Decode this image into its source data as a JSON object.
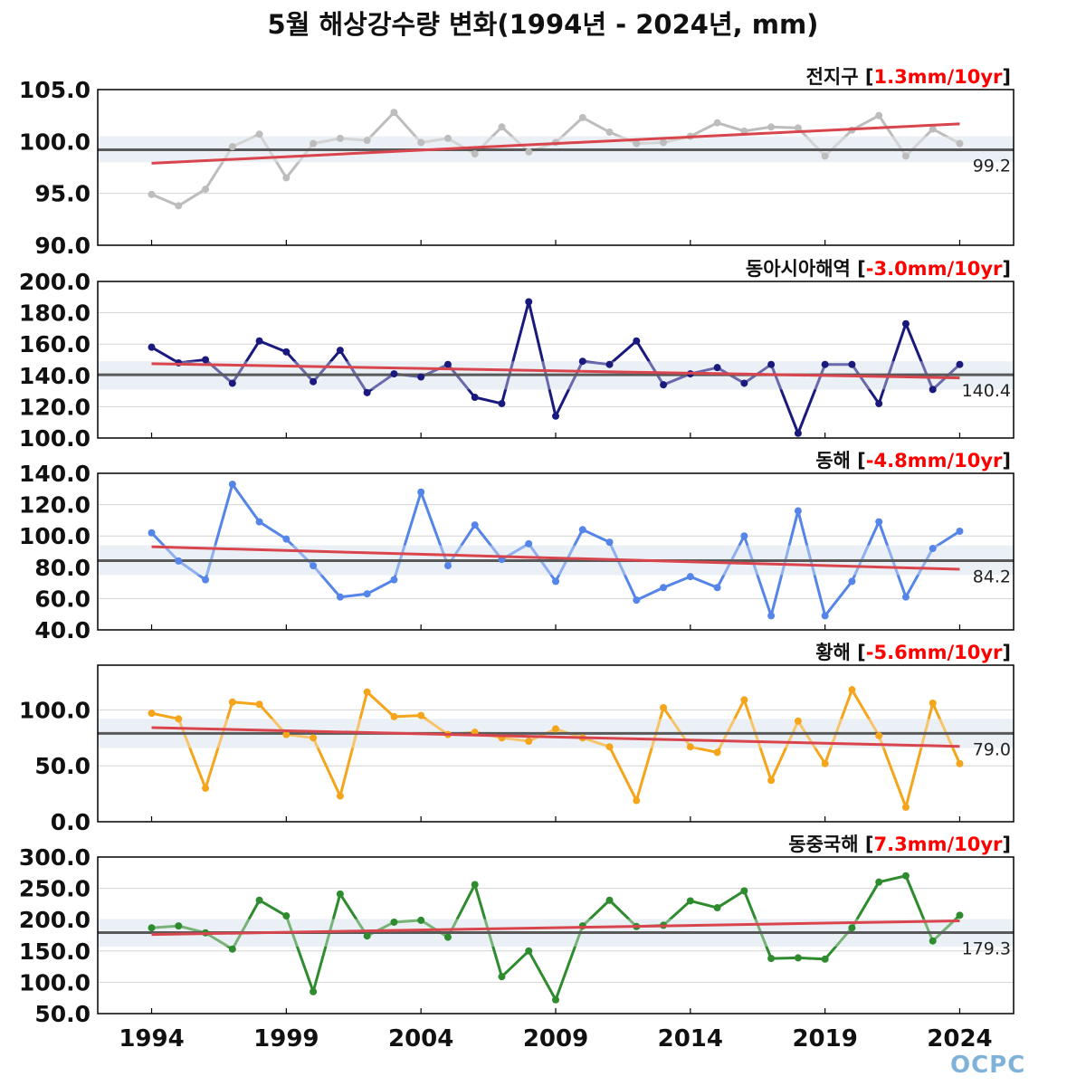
{
  "title": "5월 해상강수량 변화(1994년 - 2024년, mm)",
  "logo": "OCPC",
  "colors": {
    "trend": "#d9454d",
    "mean": "#000000",
    "band": "#dfe8f1",
    "label_red": "#ff0000"
  },
  "x_ticks": [
    1994,
    1999,
    2004,
    2009,
    2014,
    2019,
    2024
  ],
  "chart_data": [
    {
      "type": "line",
      "name": "전지구",
      "trend_label": "1.3mm/10yr",
      "color": "#bdbdbd",
      "ylim": [
        90,
        105
      ],
      "yticks": [
        "90.0",
        "95.0",
        "100.0",
        "105.0"
      ],
      "ytick_values": [
        90,
        95,
        100,
        105
      ],
      "mean": 99.2,
      "mean_label": "99.2",
      "band": [
        98.0,
        100.5
      ],
      "trend": [
        97.9,
        101.7
      ],
      "x": [
        1994,
        1995,
        1996,
        1997,
        1998,
        1999,
        2000,
        2001,
        2002,
        2003,
        2004,
        2005,
        2006,
        2007,
        2008,
        2009,
        2010,
        2011,
        2012,
        2013,
        2014,
        2015,
        2016,
        2017,
        2018,
        2019,
        2020,
        2021,
        2022,
        2023,
        2024
      ],
      "values": [
        94.9,
        93.8,
        95.4,
        99.5,
        100.7,
        96.5,
        99.8,
        100.3,
        100.1,
        102.8,
        99.9,
        100.3,
        98.8,
        101.4,
        99.0,
        99.9,
        102.3,
        100.9,
        99.8,
        99.9,
        100.5,
        101.8,
        101.0,
        101.4,
        101.3,
        98.6,
        101.1,
        102.5,
        98.6,
        101.2,
        99.8
      ]
    },
    {
      "type": "line",
      "name": "동아시아해역",
      "trend_label": "-3.0mm/10yr",
      "color": "#1a1a7e",
      "ylim": [
        100,
        200
      ],
      "yticks": [
        "100.0",
        "120.0",
        "140.0",
        "160.0",
        "180.0",
        "200.0"
      ],
      "ytick_values": [
        100,
        120,
        140,
        160,
        180,
        200
      ],
      "mean": 140.4,
      "mean_label": "140.4",
      "band": [
        131,
        149
      ],
      "trend": [
        147.5,
        138.4
      ],
      "x": [
        1994,
        1995,
        1996,
        1997,
        1998,
        1999,
        2000,
        2001,
        2002,
        2003,
        2004,
        2005,
        2006,
        2007,
        2008,
        2009,
        2010,
        2011,
        2012,
        2013,
        2014,
        2015,
        2016,
        2017,
        2018,
        2019,
        2020,
        2021,
        2022,
        2023,
        2024
      ],
      "values": [
        158,
        148,
        150,
        135,
        162,
        155,
        136,
        156,
        129,
        141,
        139,
        147,
        126,
        122,
        187,
        114,
        149,
        147,
        162,
        134,
        141,
        145,
        135,
        147,
        103,
        147,
        147,
        122,
        173,
        131,
        147
      ]
    },
    {
      "type": "line",
      "name": "동해",
      "trend_label": "-4.8mm/10yr",
      "color": "#5585e8",
      "ylim": [
        40,
        140
      ],
      "yticks": [
        "40.0",
        "60.0",
        "80.0",
        "100.0",
        "120.0",
        "140.0"
      ],
      "ytick_values": [
        40,
        60,
        80,
        100,
        120,
        140
      ],
      "mean": 84.2,
      "mean_label": "84.2",
      "band": [
        75,
        94
      ],
      "trend": [
        93.1,
        78.7
      ],
      "x": [
        1994,
        1995,
        1996,
        1997,
        1998,
        1999,
        2000,
        2001,
        2002,
        2003,
        2004,
        2005,
        2006,
        2007,
        2008,
        2009,
        2010,
        2011,
        2012,
        2013,
        2014,
        2015,
        2016,
        2017,
        2018,
        2019,
        2020,
        2021,
        2022,
        2023,
        2024
      ],
      "values": [
        102,
        84,
        72,
        133,
        109,
        98,
        81,
        61,
        63,
        72,
        128,
        81,
        107,
        85,
        95,
        71,
        104,
        96,
        59,
        67,
        74,
        67,
        100,
        49,
        116,
        49,
        71,
        109,
        61,
        92,
        103
      ]
    },
    {
      "type": "line",
      "name": "황해",
      "trend_label": "-5.6mm/10yr",
      "color": "#f5a51c",
      "ylim": [
        0,
        140
      ],
      "yticks": [
        "0.0",
        "50.0",
        "100.0"
      ],
      "ytick_values": [
        0,
        50,
        100
      ],
      "mean": 79.0,
      "mean_label": "79.0",
      "band": [
        66,
        92
      ],
      "trend": [
        84.2,
        67.4
      ],
      "x": [
        1994,
        1995,
        1996,
        1997,
        1998,
        1999,
        2000,
        2001,
        2002,
        2003,
        2004,
        2005,
        2006,
        2007,
        2008,
        2009,
        2010,
        2011,
        2012,
        2013,
        2014,
        2015,
        2016,
        2017,
        2018,
        2019,
        2020,
        2021,
        2022,
        2023,
        2024
      ],
      "values": [
        97,
        92,
        30,
        107,
        105,
        78,
        75,
        23,
        116,
        94,
        95,
        78,
        80,
        75,
        72,
        83,
        75,
        67,
        19,
        102,
        67,
        62,
        109,
        37,
        90,
        52,
        118,
        77,
        13,
        106,
        52
      ]
    },
    {
      "type": "line",
      "name": "동중국해",
      "trend_label": "7.3mm/10yr",
      "color": "#2e8b2e",
      "ylim": [
        50,
        300
      ],
      "yticks": [
        "50.0",
        "100.0",
        "150.0",
        "200.0",
        "250.0",
        "300.0"
      ],
      "ytick_values": [
        50,
        100,
        150,
        200,
        250,
        300
      ],
      "mean": 179.3,
      "mean_label": "179.3",
      "band": [
        157,
        201
      ],
      "trend": [
        176.2,
        198.1
      ],
      "x": [
        1994,
        1995,
        1996,
        1997,
        1998,
        1999,
        2000,
        2001,
        2002,
        2003,
        2004,
        2005,
        2006,
        2007,
        2008,
        2009,
        2010,
        2011,
        2012,
        2013,
        2014,
        2015,
        2016,
        2017,
        2018,
        2019,
        2020,
        2021,
        2022,
        2023,
        2024
      ],
      "values": [
        187,
        190,
        179,
        153,
        231,
        206,
        85,
        241,
        174,
        196,
        199,
        172,
        256,
        109,
        150,
        72,
        190,
        231,
        189,
        191,
        230,
        219,
        246,
        138,
        139,
        137,
        187,
        260,
        270,
        166,
        207
      ]
    }
  ]
}
